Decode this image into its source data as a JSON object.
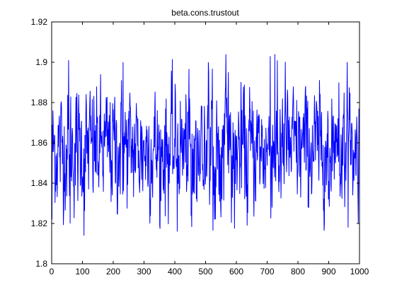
{
  "chart_data": {
    "type": "line",
    "title": "beta.cons.trustout",
    "xlabel": "",
    "ylabel": "",
    "xlim": [
      0,
      1000
    ],
    "ylim": [
      1.8,
      1.92
    ],
    "x_ticks": [
      0,
      100,
      200,
      300,
      400,
      500,
      600,
      700,
      800,
      900,
      1000
    ],
    "x_tick_labels": [
      "0",
      "100",
      "200",
      "300",
      "400",
      "500",
      "600",
      "700",
      "800",
      "900",
      "1000"
    ],
    "y_ticks": [
      1.8,
      1.82,
      1.84,
      1.86,
      1.88,
      1.9,
      1.92
    ],
    "y_tick_labels": [
      "1.8",
      "1.82",
      "1.84",
      "1.86",
      "1.88",
      "1.9",
      "1.92"
    ],
    "grid": false,
    "legend": "none",
    "series": [
      {
        "color": "#0000ff",
        "n_points": 1000,
        "mean": 1.857,
        "std": 0.015,
        "min": 1.814,
        "max": 1.904,
        "notable_points": [
          {
            "x": 1,
            "y": 1.822
          },
          {
            "x": 55,
            "y": 1.901
          },
          {
            "x": 60,
            "y": 1.82
          },
          {
            "x": 105,
            "y": 1.814
          },
          {
            "x": 232,
            "y": 1.9
          },
          {
            "x": 408,
            "y": 1.816
          },
          {
            "x": 566,
            "y": 1.904
          },
          {
            "x": 635,
            "y": 1.819
          },
          {
            "x": 710,
            "y": 1.903
          },
          {
            "x": 725,
            "y": 1.904
          },
          {
            "x": 960,
            "y": 1.9
          },
          {
            "x": 963,
            "y": 1.818
          },
          {
            "x": 995,
            "y": 1.834
          },
          {
            "x": 1000,
            "y": 1.861
          }
        ]
      }
    ]
  }
}
